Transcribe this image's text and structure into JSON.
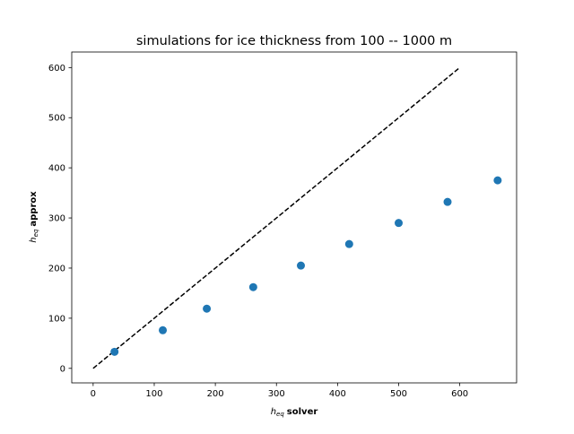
{
  "chart_data": {
    "type": "scatter",
    "title": "simulations for ice thickness from 100 -- 1000 m",
    "xlabel_symbol": "h",
    "xlabel_subscript": "eq",
    "xlabel_text": "solver",
    "ylabel_symbol": "h",
    "ylabel_subscript": "eq",
    "ylabel_text": "approx",
    "xlim": [
      -35,
      693
    ],
    "ylim": [
      -29,
      631
    ],
    "xticks": [
      0,
      100,
      200,
      300,
      400,
      500,
      600
    ],
    "yticks": [
      0,
      100,
      200,
      300,
      400,
      500,
      600
    ],
    "grid": false,
    "series": [
      {
        "marker": "circle",
        "color": "#1f77b4",
        "points": [
          {
            "x": 35,
            "y": 33
          },
          {
            "x": 114,
            "y": 76
          },
          {
            "x": 186,
            "y": 119
          },
          {
            "x": 262,
            "y": 162
          },
          {
            "x": 340,
            "y": 205
          },
          {
            "x": 419,
            "y": 248
          },
          {
            "x": 500,
            "y": 290
          },
          {
            "x": 580,
            "y": 332
          },
          {
            "x": 662,
            "y": 375
          }
        ]
      }
    ],
    "reference_line": {
      "style": "dashed",
      "color": "#000000",
      "points": [
        {
          "x": 0,
          "y": 0
        },
        {
          "x": 600,
          "y": 600
        }
      ]
    }
  }
}
